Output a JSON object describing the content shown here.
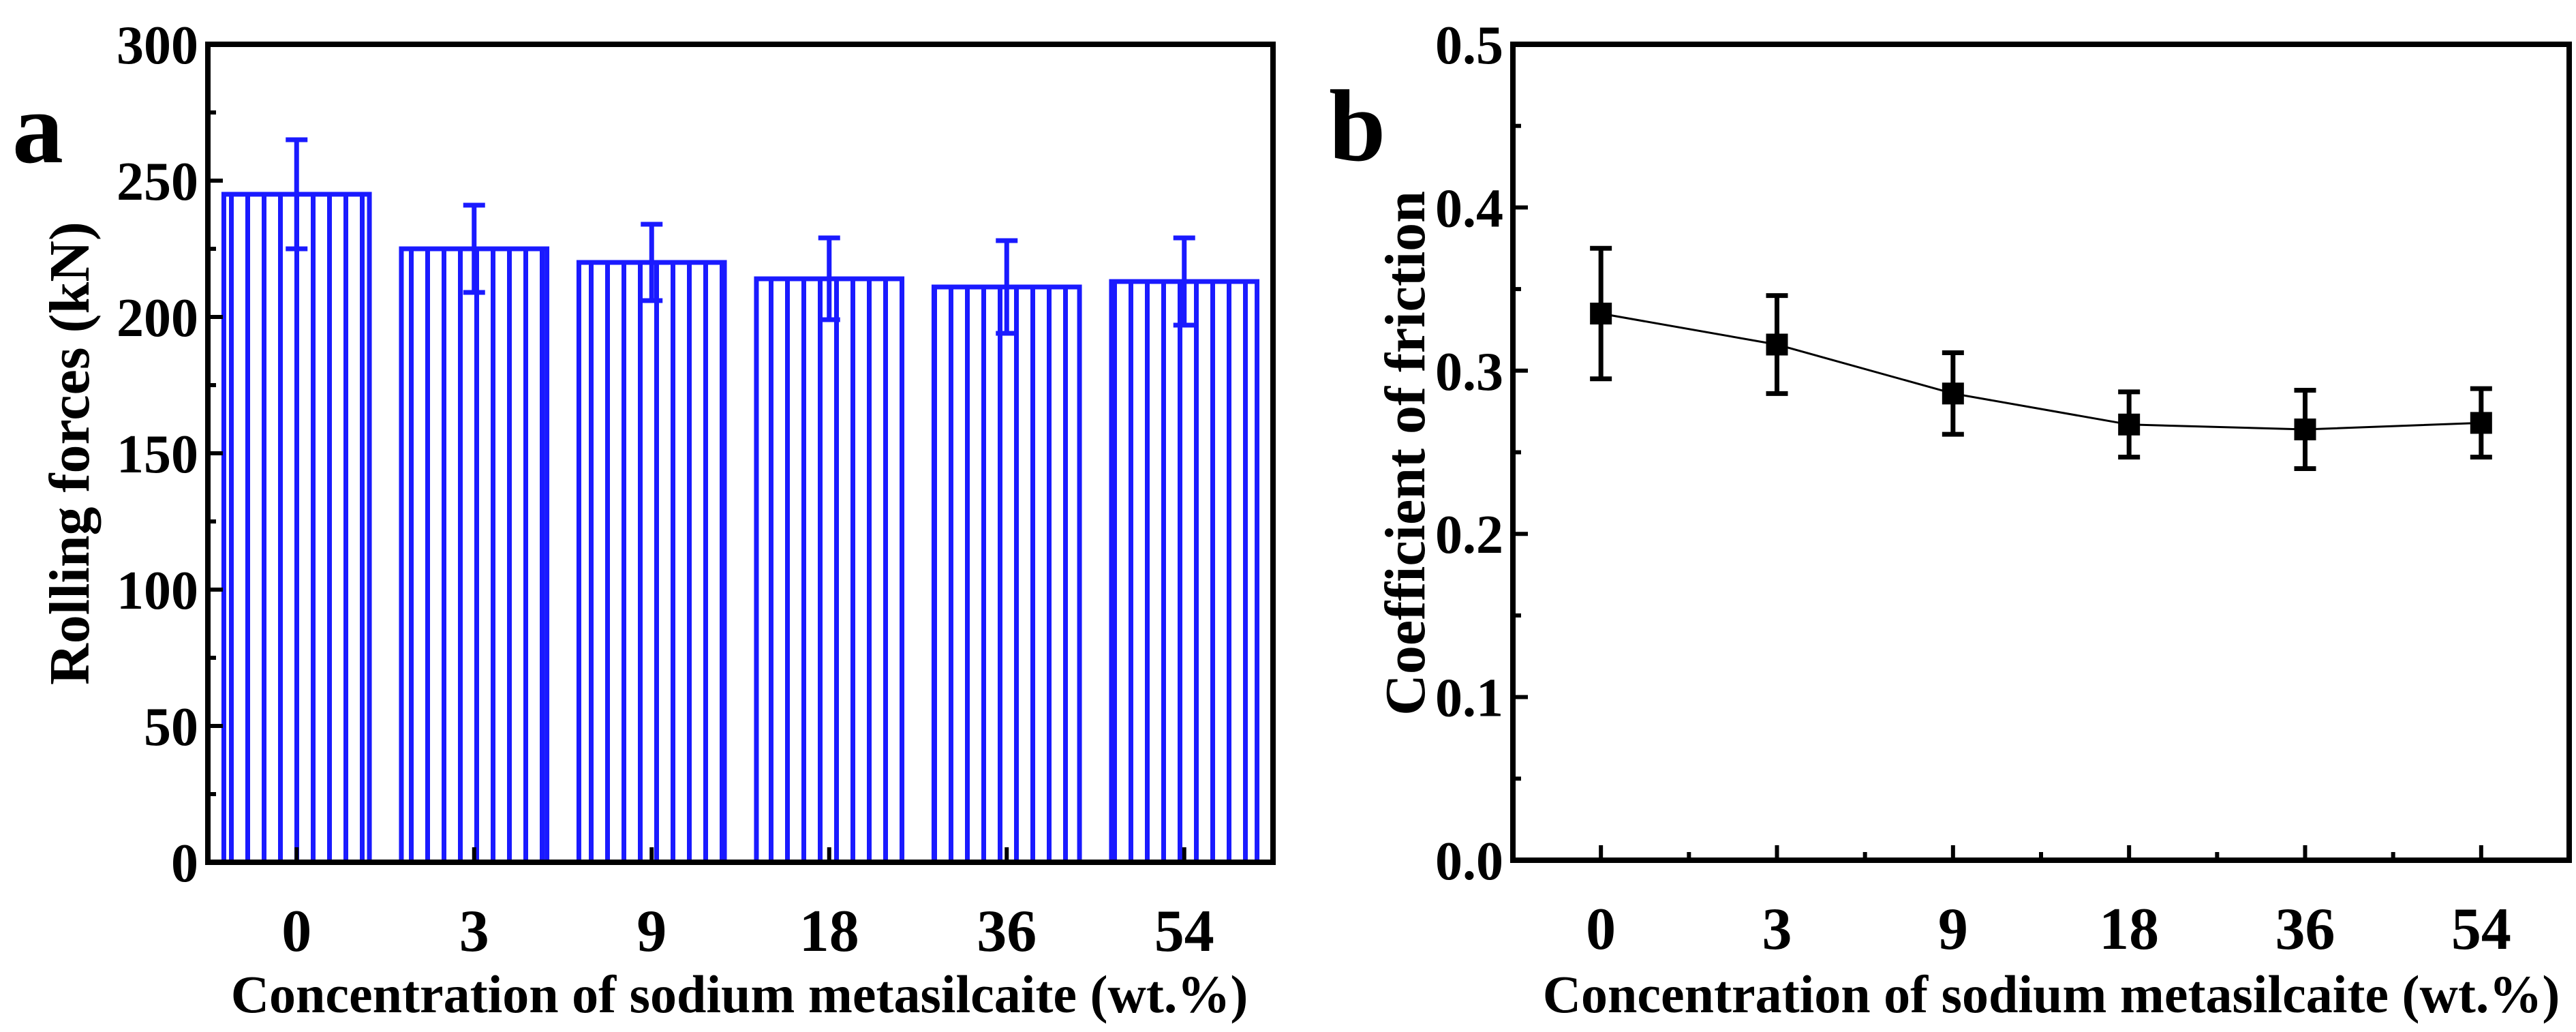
{
  "chart_data": [
    {
      "panel_label": "a",
      "type": "bar",
      "categories": [
        "0",
        "3",
        "9",
        "18",
        "36",
        "54"
      ],
      "values": [
        245,
        225,
        220,
        214,
        211,
        213
      ],
      "errors": [
        20,
        16,
        14,
        15,
        17,
        16
      ],
      "xlabel": "Concentration of sodium metasilcaite (wt.%)",
      "ylabel": "Rolling forces (kN)",
      "ylim": [
        0,
        300
      ],
      "yticks": [
        0,
        50,
        100,
        150,
        200,
        250,
        300
      ],
      "ytick_labels": [
        "0",
        "50",
        "100",
        "150",
        "200",
        "250",
        "300"
      ],
      "grid": false,
      "color": "#1a1aff",
      "fill_pattern": "vertical-hatch"
    },
    {
      "panel_label": "b",
      "type": "line",
      "categories": [
        "0",
        "3",
        "9",
        "18",
        "36",
        "54"
      ],
      "values": [
        0.335,
        0.316,
        0.286,
        0.267,
        0.264,
        0.268
      ],
      "errors": [
        0.04,
        0.03,
        0.025,
        0.02,
        0.024,
        0.021
      ],
      "xlabel": "Concentration of sodium metasilcaite (wt.%)",
      "ylabel": "Coefficient of friction",
      "ylim": [
        0,
        0.5
      ],
      "yticks": [
        0,
        0.1,
        0.2,
        0.3,
        0.4,
        0.5
      ],
      "ytick_labels": [
        "0.0",
        "0.1",
        "0.2",
        "0.3",
        "0.4",
        "0.5"
      ],
      "grid": false,
      "color": "#000000",
      "marker": "square"
    }
  ]
}
